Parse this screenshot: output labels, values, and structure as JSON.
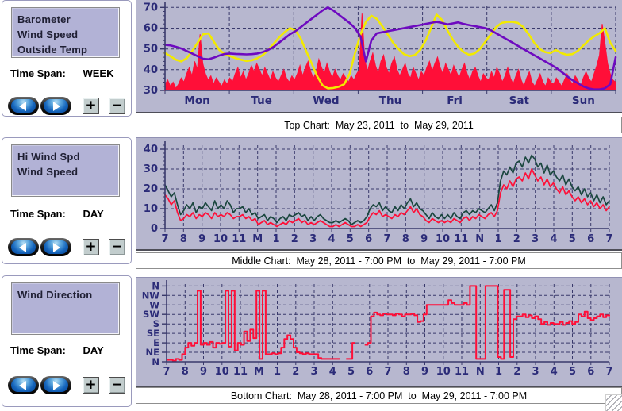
{
  "window_title": "Weather Plot",
  "colors": {
    "plot_bg": "#b7b7cf",
    "grid": "#39396b",
    "axis_labels": "#2b2b78",
    "wind_red": "#ff0f38",
    "temp_yellow": "#f2ea00",
    "barometer_purple": "#6e0ac0",
    "hi_wind_green": "#1b473f"
  },
  "buttons": {
    "zoom_in": "+",
    "zoom_out": "−"
  },
  "panels": [
    {
      "series": [
        "Barometer",
        "Wind Speed",
        "Outside Temp"
      ],
      "time_span_label": "Time Span:",
      "time_span": "WEEK"
    },
    {
      "series": [
        "Hi Wind Spd",
        "Wind Speed"
      ],
      "time_span_label": "Time Span:",
      "time_span": "DAY"
    },
    {
      "series": [
        "Wind Direction"
      ],
      "time_span_label": "Time Span:",
      "time_span": "DAY"
    }
  ],
  "captions": [
    "Top Chart:  May 23, 2011  to  May 29, 2011",
    "Middle Chart:  May 28, 2011 - 7:00 PM  to  May 29, 2011 - 7:00 PM",
    "Bottom Chart:  May 28, 2011 - 7:00 PM  to  May 29, 2011 - 7:00 PM"
  ],
  "chart_data": [
    {
      "type": "line",
      "title": "Top Chart (week): Barometer, Wind Speed, Outside Temp",
      "y_min": 30,
      "y_max": 70.5,
      "y_ticks": [
        {
          "v": 30,
          "label": "30"
        },
        {
          "v": 40,
          "label": "40"
        },
        {
          "v": 50,
          "label": "50"
        },
        {
          "v": 60,
          "label": "60"
        },
        {
          "v": 70,
          "label": "70"
        }
      ],
      "y_gridlines": [
        40,
        50,
        60,
        70
      ],
      "y_minor_step": 2,
      "x_divisions": 7,
      "x_label_mode": "center",
      "x_labels": [
        "Mon",
        "Tue",
        "Wed",
        "Thu",
        "Fri",
        "Sat",
        "Sun"
      ],
      "grid_color": "#39396b",
      "label_color": "#2b2b78",
      "series": [
        {
          "name": "Wind Speed",
          "color": "#ff0f38",
          "fill": true,
          "baseline": 30,
          "values": [
            33,
            35,
            32,
            34,
            31,
            33,
            36,
            34,
            38,
            41,
            37,
            44,
            40,
            57,
            43,
            38,
            35,
            37,
            33,
            36,
            34,
            32,
            35,
            33,
            36,
            34,
            38,
            41,
            36,
            39,
            35,
            38,
            42,
            39,
            43,
            40,
            37,
            41,
            38,
            35,
            39,
            36,
            34,
            37,
            40,
            36,
            34,
            37,
            35,
            38,
            42,
            37,
            41,
            44,
            39,
            36,
            39,
            45,
            41,
            38,
            43,
            39,
            36,
            40,
            37,
            35,
            38,
            36,
            34,
            37,
            35,
            38,
            40,
            67,
            45,
            39,
            44,
            48,
            42,
            38,
            44,
            47,
            41,
            38,
            43,
            46,
            40,
            37,
            40,
            43,
            38,
            36,
            41,
            38,
            35,
            39,
            37,
            41,
            44,
            39,
            43,
            46,
            41,
            38,
            43,
            40,
            37,
            42,
            39,
            36,
            40,
            43,
            38,
            35,
            39,
            41,
            37,
            34,
            38,
            36,
            35,
            39,
            36,
            41,
            38,
            34,
            37,
            41,
            36,
            33,
            37,
            40,
            35,
            32,
            36,
            39,
            34,
            32,
            35,
            38,
            34,
            32,
            36,
            34,
            33,
            36,
            34,
            32,
            35,
            38,
            35,
            33,
            37,
            35,
            32,
            36,
            39,
            36,
            34,
            38,
            42,
            47,
            62,
            53,
            43,
            38,
            35,
            34
          ]
        },
        {
          "name": "Outside Temp",
          "color": "#f2ea00",
          "width": 2.6,
          "values": [
            48,
            46.5,
            44.8,
            44,
            45.5,
            49,
            53,
            57,
            57.5,
            53.5,
            49.5,
            47.5,
            46.5,
            45.5,
            44.8,
            44.2,
            44.5,
            45.5,
            47,
            49.5,
            52.5,
            55.5,
            58,
            60,
            59,
            55,
            49,
            43,
            37,
            32.5,
            31,
            31.2,
            31.8,
            33,
            38,
            48,
            57,
            63,
            66,
            64.5,
            61,
            57,
            53,
            50,
            47.5,
            46.5,
            47,
            49.5,
            54,
            60,
            66.5,
            64,
            59,
            54.5,
            51,
            48.5,
            47.2,
            47.8,
            50,
            53.5,
            57,
            60.5,
            62.5,
            63,
            63,
            62.5,
            60.5,
            57,
            53,
            50,
            48.5,
            48,
            49.5,
            48,
            47.2,
            47.5,
            49,
            51.5,
            54,
            56,
            57.5,
            60,
            53,
            49
          ]
        },
        {
          "name": "Barometer",
          "color": "#6e0ac0",
          "width": 2.6,
          "values": [
            52,
            51.7,
            51,
            50.2,
            49,
            47.8,
            46.5,
            45.3,
            45,
            45.8,
            46.8,
            47.6,
            47.8,
            47.6,
            47.5,
            47.4,
            47.5,
            47.8,
            48.5,
            49.5,
            51,
            53,
            55,
            57,
            58.5,
            60.5,
            62.5,
            64.5,
            66.5,
            68.5,
            70,
            68.5,
            66.5,
            64.5,
            62.5,
            60,
            56,
            44,
            54,
            57.5,
            58,
            58.5,
            59,
            59.5,
            60,
            60.5,
            61,
            61.5,
            62,
            62.5,
            63,
            62.5,
            61.8,
            62.3,
            62.8,
            62,
            61.5,
            61,
            60.5,
            60,
            59,
            57.5,
            56,
            54.5,
            53,
            51.5,
            50,
            48.5,
            47,
            45.5,
            44,
            42.5,
            41,
            39,
            37,
            35,
            33.5,
            32,
            31,
            30.5,
            30.5,
            31,
            33,
            46
          ]
        }
      ]
    },
    {
      "type": "line",
      "title": "Middle Chart (day): Hi Wind Spd, Wind Speed",
      "y_min": 0,
      "y_max": 42,
      "y_ticks": [
        {
          "v": 0,
          "label": "0"
        },
        {
          "v": 10,
          "label": "10"
        },
        {
          "v": 20,
          "label": "20"
        },
        {
          "v": 30,
          "label": "30"
        },
        {
          "v": 40,
          "label": "40"
        }
      ],
      "y_gridlines": [
        10,
        20,
        30,
        40
      ],
      "y_minor_step": 2,
      "x_divisions": 24,
      "x_label_mode": "edge",
      "x_labels": [
        "7",
        "8",
        "9",
        "10",
        "11",
        "M",
        "1",
        "2",
        "3",
        "4",
        "5",
        "6",
        "7",
        "8",
        "9",
        "10",
        "11",
        "N",
        "1",
        "2",
        "3",
        "4",
        "5",
        "6",
        "7"
      ],
      "grid_color": "#39396b",
      "label_color": "#2b2b78",
      "series": [
        {
          "name": "Hi Wind Spd",
          "color": "#1b473f",
          "width": 1.7,
          "values": [
            22,
            19,
            16,
            18,
            12,
            7,
            9,
            12,
            10,
            13,
            8,
            11,
            10,
            13,
            11,
            9,
            14,
            10,
            12,
            10,
            14,
            12,
            8,
            10,
            10,
            11,
            8,
            10,
            7,
            8,
            5,
            6,
            7,
            4,
            6,
            5,
            3,
            5,
            6,
            4,
            7,
            6,
            7,
            8,
            6,
            7,
            4,
            6,
            4,
            6,
            7,
            5,
            4,
            3,
            3,
            4,
            3,
            4,
            5,
            4,
            2,
            3,
            4,
            3,
            4,
            6,
            10,
            12,
            11,
            13,
            9,
            11,
            9,
            8,
            11,
            9,
            12,
            10,
            13,
            15,
            11,
            13,
            10,
            9,
            7,
            5,
            8,
            6,
            5,
            7,
            5,
            7,
            5,
            8,
            6,
            5,
            8,
            9,
            7,
            9,
            8,
            10,
            9,
            8,
            10,
            12,
            9,
            13,
            24,
            29,
            27,
            31,
            28,
            33,
            34,
            31,
            36,
            33,
            37,
            35,
            31,
            33,
            28,
            32,
            27,
            29,
            26,
            24,
            27,
            22,
            25,
            21,
            19,
            21,
            17,
            20,
            16,
            18,
            14,
            17,
            13,
            16,
            12,
            14
          ]
        },
        {
          "name": "Wind Speed",
          "color": "#ff0f38",
          "width": 1.7,
          "values": [
            17,
            15,
            12,
            14,
            8,
            4,
            5,
            7,
            6,
            8,
            5,
            7,
            6,
            8,
            7,
            5,
            8,
            6,
            7,
            6,
            8,
            7,
            5,
            6,
            6,
            7,
            5,
            6,
            4,
            5,
            2,
            3,
            4,
            2,
            3,
            2,
            1,
            2,
            3,
            2,
            4,
            3,
            4,
            5,
            3,
            4,
            2,
            3,
            2,
            3,
            4,
            3,
            2,
            1,
            1,
            2,
            1,
            2,
            3,
            2,
            1,
            1,
            2,
            1,
            2,
            3,
            6,
            8,
            7,
            9,
            6,
            7,
            6,
            5,
            7,
            6,
            8,
            7,
            9,
            11,
            8,
            10,
            7,
            6,
            4,
            3,
            5,
            4,
            3,
            4,
            3,
            4,
            3,
            5,
            4,
            3,
            5,
            6,
            4,
            6,
            5,
            7,
            6,
            5,
            7,
            8,
            6,
            9,
            18,
            22,
            20,
            24,
            21,
            25,
            26,
            24,
            28,
            25,
            30,
            27,
            24,
            26,
            22,
            25,
            21,
            23,
            20,
            18,
            21,
            17,
            19,
            16,
            14,
            16,
            13,
            15,
            12,
            14,
            11,
            13,
            10,
            12,
            9,
            11
          ]
        }
      ]
    },
    {
      "type": "step-line",
      "title": "Bottom Chart (day): Wind Direction",
      "y_min": 0,
      "y_max": 8.2,
      "y_ticks": [
        {
          "v": 8,
          "label": "N"
        },
        {
          "v": 7,
          "label": "NW"
        },
        {
          "v": 6,
          "label": "W"
        },
        {
          "v": 5,
          "label": "SW"
        },
        {
          "v": 4,
          "label": "S"
        },
        {
          "v": 3,
          "label": "SE"
        },
        {
          "v": 2,
          "label": "E"
        },
        {
          "v": 1,
          "label": "NE"
        },
        {
          "v": 0,
          "label": "N"
        }
      ],
      "y_gridlines": [
        1,
        2,
        3,
        4,
        5,
        6,
        7,
        8
      ],
      "y_minor_step": 0,
      "x_divisions": 24,
      "x_label_mode": "edge",
      "x_labels": [
        "7",
        "8",
        "9",
        "10",
        "11",
        "M",
        "1",
        "2",
        "3",
        "4",
        "5",
        "6",
        "7",
        "8",
        "9",
        "10",
        "11",
        "N",
        "1",
        "2",
        "3",
        "4",
        "5",
        "6",
        "7"
      ],
      "grid_color": "#39396b",
      "label_color": "#2b2b78",
      "series": [
        {
          "name": "Wind Direction",
          "color": "#ff0f38",
          "step": true,
          "width": 2,
          "values": [
            0.2,
            0.2,
            0.1,
            0.3,
            0.2,
            0.8,
            1.5,
            2,
            1.7,
            2,
            7.5,
            1.8,
            2,
            1.8,
            2.1,
            1.5,
            2,
            1.9,
            2,
            7.5,
            1.6,
            7.5,
            1.2,
            2,
            1.8,
            3.2,
            2.2,
            3.4,
            2.5,
            7.5,
            0.3,
            7.5,
            0.8,
            0.8,
            0.9,
            0.8,
            0.9,
            1.5,
            2.4,
            2.8,
            2.4,
            1.5,
            1,
            0.9,
            0.8,
            0.9,
            0.8,
            0.8,
            0.8,
            0.4,
            0.3,
            0.3,
            0.3,
            0.3,
            0.3,
            0.3,
            0.3,
            null,
            0.3,
            0.3,
            2,
            2,
            null,
            null,
            1.8,
            2,
            4.8,
            5.2,
            5,
            4.9,
            5.1,
            5,
            5,
            4.9,
            5.1,
            5,
            4.8,
            5,
            5,
            5.1,
            4.9,
            4.2,
            4.3,
            5,
            6,
            6,
            6,
            6,
            6,
            6,
            6,
            6.5,
            6.2,
            6,
            6,
            6,
            6.2,
            6,
            8,
            8,
            0.3,
            0.3,
            0.3,
            8,
            8,
            8,
            8,
            0.5,
            0.3,
            7.6,
            7.6,
            0.5,
            4.5,
            4.8,
            4.8,
            5,
            4.7,
            4.9,
            4.6,
            4.8,
            4.5,
            4,
            4.2,
            3.9,
            4.1,
            4,
            4,
            4.2,
            3.9,
            4.1,
            4.3,
            4,
            4.2,
            5,
            4.8,
            5.3,
            4.6,
            4.4,
            4.6,
            4.8,
            5,
            4.7,
            4.9,
            4.8
          ]
        }
      ]
    }
  ]
}
